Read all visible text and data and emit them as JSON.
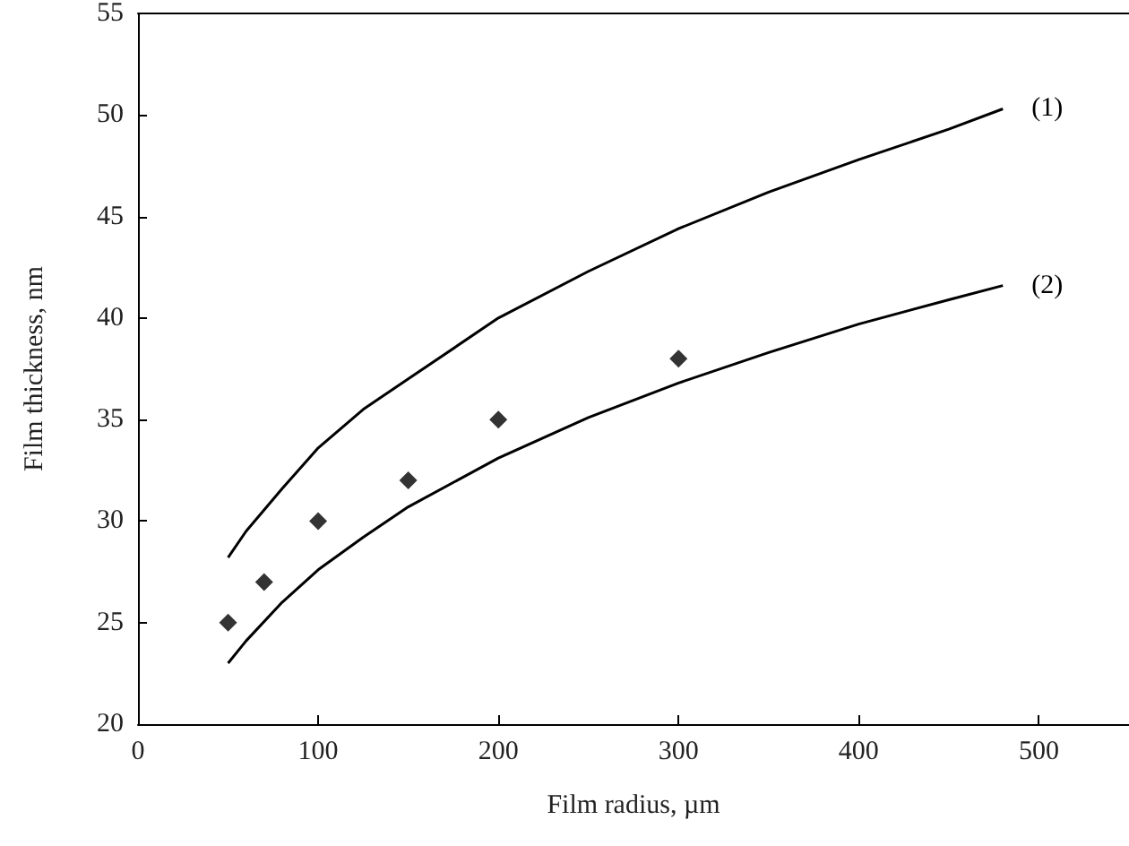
{
  "chart_data": {
    "type": "line",
    "xlabel": "Film radius, µm",
    "ylabel": "Film thickness, nm",
    "xlim": [
      0,
      550
    ],
    "xticks": [
      0,
      100,
      200,
      300,
      400,
      500
    ],
    "ylim": [
      20,
      55
    ],
    "yticks": [
      20,
      25,
      30,
      35,
      40,
      45,
      50,
      55
    ],
    "grid": false,
    "legend": false,
    "series": [
      {
        "name": "(1)",
        "color": "#000000",
        "marker": "none",
        "x": [
          50,
          60,
          80,
          100,
          125,
          150,
          200,
          250,
          300,
          350,
          400,
          450,
          480
        ],
        "values": [
          28.2,
          29.5,
          31.6,
          33.6,
          35.5,
          37.0,
          40.0,
          42.3,
          44.4,
          46.2,
          47.8,
          49.3,
          50.3
        ]
      },
      {
        "name": "(2)",
        "color": "#000000",
        "marker": "none",
        "x": [
          50,
          60,
          80,
          100,
          125,
          150,
          200,
          250,
          300,
          350,
          400,
          450,
          480
        ],
        "values": [
          23.0,
          24.1,
          26.0,
          27.6,
          29.2,
          30.7,
          33.1,
          35.1,
          36.8,
          38.3,
          39.7,
          40.9,
          41.6
        ]
      },
      {
        "type": "scatter",
        "color": "#000000",
        "marker": "diamond",
        "x": [
          50,
          70,
          100,
          150,
          200,
          300
        ],
        "values": [
          25,
          27,
          30,
          32,
          35,
          38
        ]
      }
    ]
  }
}
